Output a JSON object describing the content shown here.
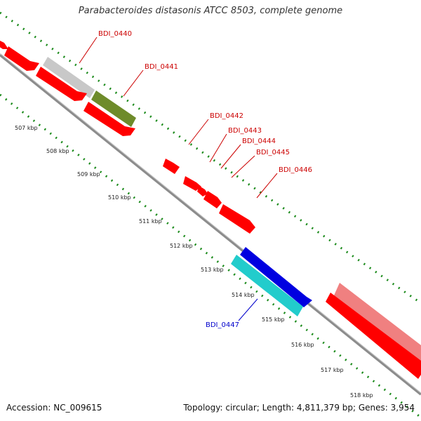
{
  "title": "Parabacteroides distasonis ATCC 8503, complete genome",
  "footer": {
    "accession": "Accession: NC_009615",
    "summary": "Topology: circular; Length: 4,811,379 bp; Genes: 3,954"
  },
  "colors": {
    "backbone": "#8c8c8c",
    "tick": "#1a8a1a",
    "gene_red": "#ff0000",
    "label_red": "#cc0000",
    "label_blue": "#0000cc"
  },
  "scale_labels": [
    "507 kbp",
    "508 kbp",
    "509 kbp",
    "510 kbp",
    "511 kbp",
    "512 kbp",
    "513 kbp",
    "514 kbp",
    "515 kbp",
    "516 kbp",
    "517 kbp",
    "518 kbp"
  ],
  "gene_labels": [
    {
      "text": "BDI_0440",
      "color": "#cc0000"
    },
    {
      "text": "BDI_0441",
      "color": "#cc0000"
    },
    {
      "text": "BDI_0442",
      "color": "#cc0000"
    },
    {
      "text": "BDI_0443",
      "color": "#cc0000"
    },
    {
      "text": "BDI_0444",
      "color": "#cc0000"
    },
    {
      "text": "BDI_0445",
      "color": "#cc0000"
    },
    {
      "text": "BDI_0446",
      "color": "#cc0000"
    },
    {
      "text": "BDI_0447",
      "color": "#0000cc"
    }
  ]
}
